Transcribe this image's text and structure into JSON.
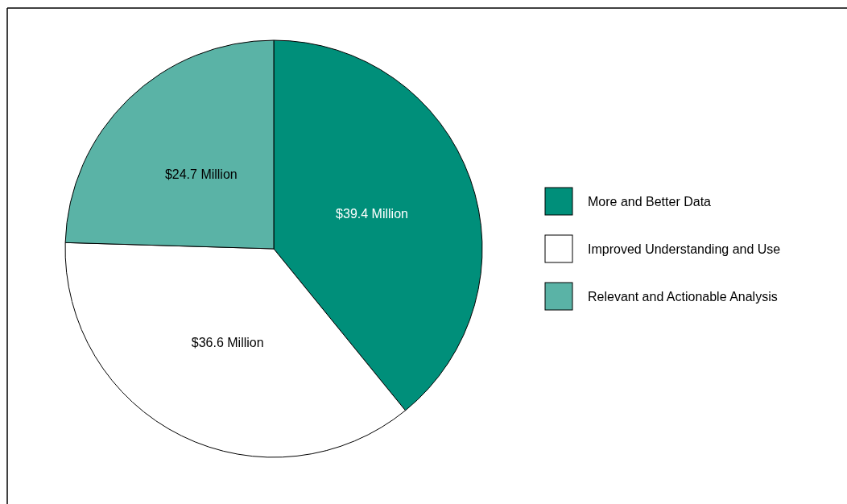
{
  "chart_data": {
    "type": "pie",
    "categories": [
      "More and Better Data",
      "Improved Understanding and Use",
      "Relevant and Actionable Analysis"
    ],
    "values": [
      39.4,
      36.6,
      24.7
    ],
    "colors": [
      "#008f7a",
      "#ffffff",
      "#5ab3a6"
    ],
    "value_labels": [
      "$39.4 Million",
      "$36.6 Million",
      "$24.7 Million"
    ],
    "legend": "right"
  }
}
